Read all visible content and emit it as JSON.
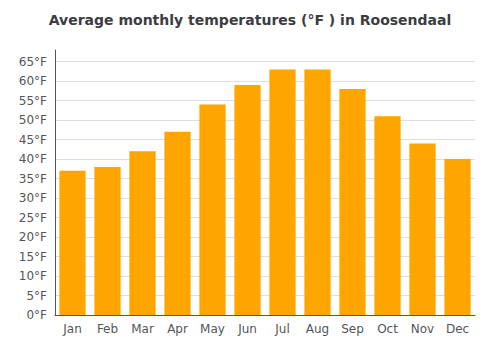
{
  "chart_data": {
    "type": "bar",
    "title": "Average monthly temperatures (°F ) in Roosendaal",
    "categories": [
      "Jan",
      "Feb",
      "Mar",
      "Apr",
      "May",
      "Jun",
      "Jul",
      "Aug",
      "Sep",
      "Oct",
      "Nov",
      "Dec"
    ],
    "values": [
      37,
      38,
      42,
      47,
      54,
      59,
      63,
      63,
      58,
      51,
      44,
      40
    ],
    "color": "#FFA500",
    "ylim": [
      0,
      68
    ],
    "yticks": [
      {
        "value": 0,
        "label": "0°F"
      },
      {
        "value": 5,
        "label": "5°F"
      },
      {
        "value": 10,
        "label": "10°F"
      },
      {
        "value": 15,
        "label": "15°F"
      },
      {
        "value": 20,
        "label": "20°F"
      },
      {
        "value": 25,
        "label": "25°F"
      },
      {
        "value": 30,
        "label": "30°F"
      },
      {
        "value": 35,
        "label": "35°F"
      },
      {
        "value": 40,
        "label": "40°F"
      },
      {
        "value": 45,
        "label": "45°F"
      },
      {
        "value": 50,
        "label": "50°F"
      },
      {
        "value": 55,
        "label": "55°F"
      },
      {
        "value": 60,
        "label": "60°F"
      },
      {
        "value": 65,
        "label": "65°F"
      }
    ],
    "grid": true
  }
}
